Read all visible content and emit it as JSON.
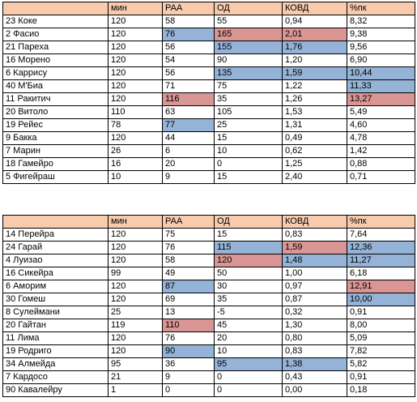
{
  "headers": [
    "",
    "мин",
    "РАА",
    "ОД",
    "КОВД",
    "%пк"
  ],
  "colors": {
    "header": "#f8cbad",
    "blue": "#95b3d7",
    "red": "#da9694"
  },
  "tables": [
    {
      "rows": [
        {
          "cells": [
            "23 Коке",
            "120",
            "58",
            "55",
            "0,94",
            "8,32"
          ],
          "hl": [
            "",
            "",
            "",
            "",
            "",
            ""
          ]
        },
        {
          "cells": [
            "2 Фасио",
            "120",
            "76",
            "165",
            "2,01",
            "9,38"
          ],
          "hl": [
            "",
            "",
            "blue",
            "red",
            "red",
            ""
          ]
        },
        {
          "cells": [
            "21 Парexa",
            "120",
            "56",
            "155",
            "1,76",
            "9,56"
          ],
          "hl": [
            "",
            "",
            "",
            "blue",
            "blue",
            ""
          ]
        },
        {
          "cells": [
            "16 Морено",
            "120",
            "54",
            "90",
            "1,20",
            "6,90"
          ],
          "hl": [
            "",
            "",
            "",
            "",
            "",
            ""
          ]
        },
        {
          "cells": [
            "6 Каррису",
            "120",
            "56",
            "135",
            "1,59",
            "10,44"
          ],
          "hl": [
            "",
            "",
            "",
            "blue",
            "blue",
            "blue"
          ]
        },
        {
          "cells": [
            "40 М'Биа",
            "120",
            "71",
            "75",
            "1,22",
            "11,33"
          ],
          "hl": [
            "",
            "",
            "",
            "",
            "",
            "blue"
          ]
        },
        {
          "cells": [
            "11 Ракитич",
            "120",
            "116",
            "35",
            "1,26",
            "13,27"
          ],
          "hl": [
            "",
            "",
            "red",
            "",
            "",
            "red"
          ]
        },
        {
          "cells": [
            "20 Витоло",
            "110",
            "63",
            "105",
            "1,53",
            "5,49"
          ],
          "hl": [
            "",
            "",
            "",
            "",
            "",
            ""
          ]
        },
        {
          "cells": [
            "19 Рейес",
            "78",
            "77",
            "25",
            "1,31",
            "4,60"
          ],
          "hl": [
            "",
            "",
            "blue",
            "",
            "",
            ""
          ]
        },
        {
          "cells": [
            "9 Бакка",
            "120",
            "44",
            "15",
            "0,49",
            "4,78"
          ],
          "hl": [
            "",
            "",
            "",
            "",
            "",
            ""
          ]
        },
        {
          "cells": [
            "7 Марин",
            "26",
            "6",
            "10",
            "0,62",
            "1,42"
          ],
          "hl": [
            "",
            "",
            "",
            "",
            "",
            ""
          ]
        },
        {
          "cells": [
            "18 Гамейро",
            "16",
            "20",
            "0",
            "1,25",
            "0,88"
          ],
          "hl": [
            "",
            "",
            "",
            "",
            "",
            ""
          ]
        },
        {
          "cells": [
            "5 Фигейраш",
            "10",
            "9",
            "15",
            "2,40",
            "0,71"
          ],
          "hl": [
            "",
            "",
            "",
            "",
            "",
            ""
          ]
        }
      ]
    },
    {
      "rows": [
        {
          "cells": [
            "14 Перейра",
            "120",
            "75",
            "15",
            "0,83",
            "7,64"
          ],
          "hl": [
            "",
            "",
            "",
            "",
            "",
            ""
          ]
        },
        {
          "cells": [
            "24 Гарай",
            "120",
            "76",
            "115",
            "1,59",
            "12,36"
          ],
          "hl": [
            "",
            "",
            "",
            "blue",
            "red",
            "blue"
          ]
        },
        {
          "cells": [
            "4 Луизао",
            "120",
            "58",
            "120",
            "1,48",
            "11,27"
          ],
          "hl": [
            "",
            "",
            "",
            "red",
            "blue",
            "blue"
          ]
        },
        {
          "cells": [
            "16 Сикейра",
            "99",
            "49",
            "50",
            "1,00",
            "6,18"
          ],
          "hl": [
            "",
            "",
            "",
            "",
            "",
            ""
          ]
        },
        {
          "cells": [
            "6 Аморим",
            "120",
            "87",
            "30",
            "0,97",
            "12,91"
          ],
          "hl": [
            "",
            "",
            "blue",
            "",
            "",
            "red"
          ]
        },
        {
          "cells": [
            "30 Гомеш",
            "120",
            "69",
            "35",
            "0,87",
            "10,00"
          ],
          "hl": [
            "",
            "",
            "",
            "",
            "",
            "blue"
          ]
        },
        {
          "cells": [
            "8 Сулеймани",
            "25",
            "13",
            "-5",
            "0,32",
            "0,91"
          ],
          "hl": [
            "",
            "",
            "",
            "",
            "",
            ""
          ]
        },
        {
          "cells": [
            "20 Гайтан",
            "119",
            "110",
            "45",
            "1,30",
            "8,00"
          ],
          "hl": [
            "",
            "",
            "red",
            "",
            "",
            ""
          ]
        },
        {
          "cells": [
            "11 Лима",
            "120",
            "76",
            "20",
            "0,80",
            "5,09"
          ],
          "hl": [
            "",
            "",
            "",
            "",
            "",
            ""
          ]
        },
        {
          "cells": [
            "19 Родриго",
            "120",
            "90",
            "10",
            "0,83",
            "7,82"
          ],
          "hl": [
            "",
            "",
            "blue",
            "",
            "",
            ""
          ]
        },
        {
          "cells": [
            "34 Алмейда",
            "95",
            "36",
            "95",
            "1,38",
            "5,82"
          ],
          "hl": [
            "",
            "",
            "",
            "blue",
            "blue",
            ""
          ]
        },
        {
          "cells": [
            "7 Кардосо",
            "21",
            "9",
            "0",
            "0,43",
            "0,91"
          ],
          "hl": [
            "",
            "",
            "",
            "",
            "",
            ""
          ]
        },
        {
          "cells": [
            "90 Кавалейру",
            "1",
            "0",
            "0",
            "0,00",
            "0,18"
          ],
          "hl": [
            "",
            "",
            "",
            "",
            "",
            ""
          ]
        }
      ]
    }
  ]
}
